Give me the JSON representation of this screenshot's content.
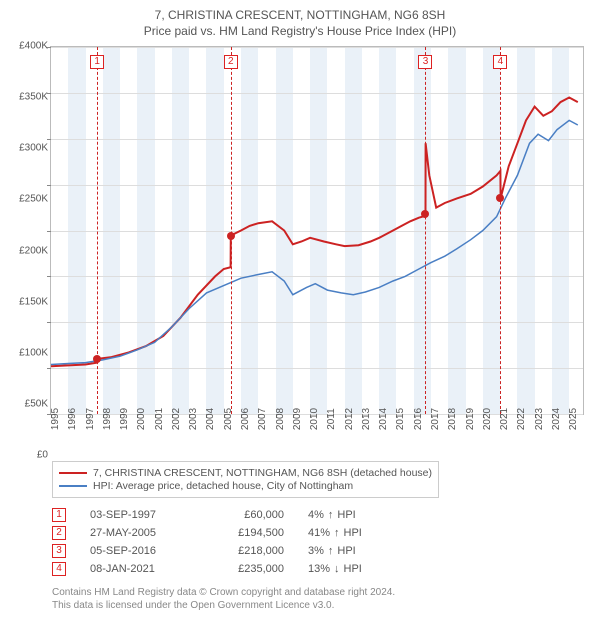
{
  "title": "7, CHRISTINA CRESCENT, NOTTINGHAM, NG6 8SH",
  "subtitle": "Price paid vs. HM Land Registry's House Price Index (HPI)",
  "chart": {
    "type": "line",
    "background_color": "#ffffff",
    "band_color": "#eaf1f8",
    "grid_color": "#dddddd",
    "axis_color": "#bbbbbb",
    "x": {
      "min": 1995,
      "max": 2025.8,
      "ticks": [
        1995,
        1996,
        1997,
        1998,
        1999,
        2000,
        2001,
        2002,
        2003,
        2004,
        2005,
        2006,
        2007,
        2008,
        2009,
        2010,
        2011,
        2012,
        2013,
        2014,
        2015,
        2016,
        2017,
        2018,
        2019,
        2020,
        2021,
        2022,
        2023,
        2024,
        2025
      ]
    },
    "y": {
      "min": 0,
      "max": 400000,
      "ticks": [
        0,
        50000,
        100000,
        150000,
        200000,
        250000,
        300000,
        350000,
        400000
      ],
      "labels": [
        "£0",
        "£50K",
        "£100K",
        "£150K",
        "£200K",
        "£250K",
        "£300K",
        "£350K",
        "£400K"
      ]
    },
    "series": [
      {
        "name": "7, CHRISTINA CRESCENT, NOTTINGHAM, NG6 8SH (detached house)",
        "color": "#cc2222",
        "width": 2,
        "points": [
          [
            1995.0,
            52000
          ],
          [
            1996.0,
            53000
          ],
          [
            1997.0,
            54000
          ],
          [
            1997.67,
            56000
          ],
          [
            1997.68,
            60000
          ],
          [
            1998.5,
            62000
          ],
          [
            1999.5,
            67000
          ],
          [
            2000.5,
            74000
          ],
          [
            2001.5,
            85000
          ],
          [
            2002.5,
            105000
          ],
          [
            2003.5,
            130000
          ],
          [
            2004.5,
            150000
          ],
          [
            2005.0,
            158000
          ],
          [
            2005.4,
            160000
          ],
          [
            2005.41,
            194500
          ],
          [
            2006.0,
            200000
          ],
          [
            2006.5,
            205000
          ],
          [
            2007.0,
            208000
          ],
          [
            2007.8,
            210000
          ],
          [
            2008.5,
            200000
          ],
          [
            2009.0,
            185000
          ],
          [
            2009.5,
            188000
          ],
          [
            2010.0,
            192000
          ],
          [
            2010.8,
            188000
          ],
          [
            2011.5,
            185000
          ],
          [
            2012.0,
            183000
          ],
          [
            2012.8,
            184000
          ],
          [
            2013.5,
            188000
          ],
          [
            2014.0,
            192000
          ],
          [
            2014.8,
            200000
          ],
          [
            2015.3,
            205000
          ],
          [
            2015.8,
            210000
          ],
          [
            2016.3,
            214000
          ],
          [
            2016.67,
            216000
          ],
          [
            2016.68,
            218000
          ],
          [
            2016.69,
            295000
          ],
          [
            2016.9,
            260000
          ],
          [
            2017.3,
            225000
          ],
          [
            2017.8,
            230000
          ],
          [
            2018.5,
            235000
          ],
          [
            2019.3,
            240000
          ],
          [
            2020.0,
            248000
          ],
          [
            2020.8,
            260000
          ],
          [
            2021.02,
            265000
          ],
          [
            2021.03,
            235000
          ],
          [
            2021.5,
            270000
          ],
          [
            2022.0,
            295000
          ],
          [
            2022.5,
            320000
          ],
          [
            2023.0,
            335000
          ],
          [
            2023.5,
            325000
          ],
          [
            2024.0,
            330000
          ],
          [
            2024.5,
            340000
          ],
          [
            2025.0,
            345000
          ],
          [
            2025.5,
            340000
          ]
        ]
      },
      {
        "name": "HPI: Average price, detached house, City of Nottingham",
        "color": "#4a7fc4",
        "width": 1.5,
        "points": [
          [
            1995.0,
            54000
          ],
          [
            1996.0,
            55000
          ],
          [
            1997.0,
            56000
          ],
          [
            1998.0,
            59000
          ],
          [
            1999.0,
            63000
          ],
          [
            2000.0,
            70000
          ],
          [
            2001.0,
            78000
          ],
          [
            2002.0,
            95000
          ],
          [
            2003.0,
            115000
          ],
          [
            2004.0,
            132000
          ],
          [
            2005.0,
            140000
          ],
          [
            2006.0,
            148000
          ],
          [
            2007.0,
            152000
          ],
          [
            2007.8,
            155000
          ],
          [
            2008.5,
            145000
          ],
          [
            2009.0,
            130000
          ],
          [
            2009.8,
            138000
          ],
          [
            2010.3,
            142000
          ],
          [
            2011.0,
            135000
          ],
          [
            2011.8,
            132000
          ],
          [
            2012.5,
            130000
          ],
          [
            2013.2,
            133000
          ],
          [
            2014.0,
            138000
          ],
          [
            2014.8,
            145000
          ],
          [
            2015.5,
            150000
          ],
          [
            2016.3,
            158000
          ],
          [
            2017.0,
            165000
          ],
          [
            2017.8,
            172000
          ],
          [
            2018.5,
            180000
          ],
          [
            2019.3,
            190000
          ],
          [
            2020.0,
            200000
          ],
          [
            2020.8,
            215000
          ],
          [
            2021.3,
            235000
          ],
          [
            2022.0,
            260000
          ],
          [
            2022.7,
            295000
          ],
          [
            2023.2,
            305000
          ],
          [
            2023.8,
            298000
          ],
          [
            2024.3,
            310000
          ],
          [
            2025.0,
            320000
          ],
          [
            2025.5,
            315000
          ]
        ]
      }
    ],
    "sale_markers": [
      {
        "idx": "1",
        "x": 1997.67,
        "y": 60000,
        "dash_color": "#cc2222"
      },
      {
        "idx": "2",
        "x": 2005.41,
        "y": 194500,
        "dash_color": "#cc2222"
      },
      {
        "idx": "3",
        "x": 2016.68,
        "y": 218000,
        "dash_color": "#cc2222"
      },
      {
        "idx": "4",
        "x": 2021.02,
        "y": 235000,
        "dash_color": "#cc2222"
      }
    ],
    "dot_color": "#cc2222"
  },
  "legend": [
    {
      "color": "#cc2222",
      "label": "7, CHRISTINA CRESCENT, NOTTINGHAM, NG6 8SH (detached house)"
    },
    {
      "color": "#4a7fc4",
      "label": "HPI: Average price, detached house, City of Nottingham"
    }
  ],
  "sales": [
    {
      "idx": "1",
      "date": "03-SEP-1997",
      "price": "£60,000",
      "diff": "4%",
      "arrow": "↑",
      "vs": "HPI"
    },
    {
      "idx": "2",
      "date": "27-MAY-2005",
      "price": "£194,500",
      "diff": "41%",
      "arrow": "↑",
      "vs": "HPI"
    },
    {
      "idx": "3",
      "date": "05-SEP-2016",
      "price": "£218,000",
      "diff": "3%",
      "arrow": "↑",
      "vs": "HPI"
    },
    {
      "idx": "4",
      "date": "08-JAN-2021",
      "price": "£235,000",
      "diff": "13%",
      "arrow": "↓",
      "vs": "HPI"
    }
  ],
  "footer": {
    "line1": "Contains HM Land Registry data © Crown copyright and database right 2024.",
    "line2": "This data is licensed under the Open Government Licence v3.0."
  }
}
